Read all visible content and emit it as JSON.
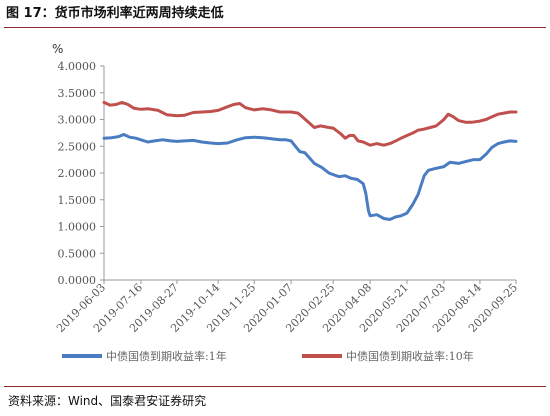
{
  "header": {
    "title": "图 17：货币市场利率近两周持续走低"
  },
  "footer": {
    "source": "资料来源：Wind、国泰君安证券研究"
  },
  "chart_data": {
    "type": "line",
    "unit_label": "%",
    "ylim": [
      0,
      4
    ],
    "y_ticks": [
      "4.0000",
      "3.5000",
      "3.0000",
      "2.5000",
      "2.0000",
      "1.5000",
      "1.0000",
      "0.5000",
      "0.0000"
    ],
    "y_tick_values": [
      4.0,
      3.5,
      3.0,
      2.5,
      2.0,
      1.5,
      1.0,
      0.5,
      0.0
    ],
    "x_ticks": [
      "2019-06-03",
      "2019-07-16",
      "2019-08-27",
      "2019-10-14",
      "2019-11-25",
      "2020-01-07",
      "2020-02-25",
      "2020-04-08",
      "2020-05-21",
      "2020-07-03",
      "2020-08-14",
      "2020-09-25"
    ],
    "xlim": [
      "2019-06-03",
      "2020-09-25"
    ],
    "grid": false,
    "legend_position": "bottom",
    "series": [
      {
        "name": "中债国债到期收益率:1年",
        "color": "#4a7cc1",
        "points": [
          [
            "2019-06-03",
            2.65
          ],
          [
            "2019-06-12",
            2.66
          ],
          [
            "2019-06-20",
            2.68
          ],
          [
            "2019-06-26",
            2.72
          ],
          [
            "2019-07-03",
            2.67
          ],
          [
            "2019-07-10",
            2.65
          ],
          [
            "2019-07-16",
            2.62
          ],
          [
            "2019-07-24",
            2.58
          ],
          [
            "2019-08-01",
            2.6
          ],
          [
            "2019-08-10",
            2.62
          ],
          [
            "2019-08-20",
            2.6
          ],
          [
            "2019-08-27",
            2.59
          ],
          [
            "2019-09-05",
            2.6
          ],
          [
            "2019-09-15",
            2.61
          ],
          [
            "2019-09-25",
            2.58
          ],
          [
            "2019-10-05",
            2.56
          ],
          [
            "2019-10-14",
            2.55
          ],
          [
            "2019-10-25",
            2.56
          ],
          [
            "2019-11-05",
            2.62
          ],
          [
            "2019-11-15",
            2.66
          ],
          [
            "2019-11-25",
            2.67
          ],
          [
            "2019-12-05",
            2.66
          ],
          [
            "2019-12-15",
            2.64
          ],
          [
            "2019-12-25",
            2.62
          ],
          [
            "2020-01-01",
            2.62
          ],
          [
            "2020-01-07",
            2.6
          ],
          [
            "2020-01-12",
            2.5
          ],
          [
            "2020-01-17",
            2.4
          ],
          [
            "2020-01-23",
            2.38
          ],
          [
            "2020-02-03",
            2.18
          ],
          [
            "2020-02-12",
            2.1
          ],
          [
            "2020-02-20",
            2.0
          ],
          [
            "2020-02-25",
            1.97
          ],
          [
            "2020-03-03",
            1.93
          ],
          [
            "2020-03-10",
            1.95
          ],
          [
            "2020-03-17",
            1.9
          ],
          [
            "2020-03-24",
            1.88
          ],
          [
            "2020-03-31",
            1.8
          ],
          [
            "2020-04-03",
            1.62
          ],
          [
            "2020-04-06",
            1.3
          ],
          [
            "2020-04-08",
            1.2
          ],
          [
            "2020-04-16",
            1.22
          ],
          [
            "2020-04-24",
            1.15
          ],
          [
            "2020-05-01",
            1.13
          ],
          [
            "2020-05-08",
            1.18
          ],
          [
            "2020-05-14",
            1.2
          ],
          [
            "2020-05-21",
            1.25
          ],
          [
            "2020-05-28",
            1.42
          ],
          [
            "2020-06-03",
            1.6
          ],
          [
            "2020-06-10",
            1.95
          ],
          [
            "2020-06-15",
            2.05
          ],
          [
            "2020-06-22",
            2.08
          ],
          [
            "2020-07-03",
            2.12
          ],
          [
            "2020-07-10",
            2.2
          ],
          [
            "2020-07-20",
            2.18
          ],
          [
            "2020-07-30",
            2.22
          ],
          [
            "2020-08-07",
            2.25
          ],
          [
            "2020-08-14",
            2.25
          ],
          [
            "2020-08-21",
            2.35
          ],
          [
            "2020-08-28",
            2.48
          ],
          [
            "2020-09-04",
            2.55
          ],
          [
            "2020-09-11",
            2.58
          ],
          [
            "2020-09-18",
            2.6
          ],
          [
            "2020-09-25",
            2.59
          ]
        ]
      },
      {
        "name": "中债国债到期收益率:10年",
        "color": "#c0504d",
        "points": [
          [
            "2019-06-03",
            3.32
          ],
          [
            "2019-06-10",
            3.27
          ],
          [
            "2019-06-17",
            3.28
          ],
          [
            "2019-06-24",
            3.32
          ],
          [
            "2019-07-01",
            3.28
          ],
          [
            "2019-07-08",
            3.21
          ],
          [
            "2019-07-16",
            3.19
          ],
          [
            "2019-07-25",
            3.2
          ],
          [
            "2019-08-05",
            3.17
          ],
          [
            "2019-08-15",
            3.09
          ],
          [
            "2019-08-27",
            3.07
          ],
          [
            "2019-09-05",
            3.08
          ],
          [
            "2019-09-15",
            3.13
          ],
          [
            "2019-09-25",
            3.14
          ],
          [
            "2019-10-05",
            3.15
          ],
          [
            "2019-10-14",
            3.17
          ],
          [
            "2019-10-22",
            3.22
          ],
          [
            "2019-11-01",
            3.28
          ],
          [
            "2019-11-08",
            3.3
          ],
          [
            "2019-11-15",
            3.22
          ],
          [
            "2019-11-25",
            3.18
          ],
          [
            "2019-12-05",
            3.2
          ],
          [
            "2019-12-15",
            3.18
          ],
          [
            "2019-12-25",
            3.14
          ],
          [
            "2020-01-07",
            3.14
          ],
          [
            "2020-01-15",
            3.12
          ],
          [
            "2020-01-20",
            3.05
          ],
          [
            "2020-02-03",
            2.85
          ],
          [
            "2020-02-10",
            2.88
          ],
          [
            "2020-02-20",
            2.85
          ],
          [
            "2020-02-25",
            2.84
          ],
          [
            "2020-03-05",
            2.73
          ],
          [
            "2020-03-10",
            2.65
          ],
          [
            "2020-03-15",
            2.7
          ],
          [
            "2020-03-20",
            2.7
          ],
          [
            "2020-03-25",
            2.6
          ],
          [
            "2020-03-31",
            2.58
          ],
          [
            "2020-04-08",
            2.52
          ],
          [
            "2020-04-16",
            2.55
          ],
          [
            "2020-04-24",
            2.52
          ],
          [
            "2020-05-01",
            2.55
          ],
          [
            "2020-05-08",
            2.6
          ],
          [
            "2020-05-14",
            2.65
          ],
          [
            "2020-05-21",
            2.7
          ],
          [
            "2020-05-28",
            2.75
          ],
          [
            "2020-06-03",
            2.8
          ],
          [
            "2020-06-10",
            2.82
          ],
          [
            "2020-06-17",
            2.85
          ],
          [
            "2020-06-24",
            2.88
          ],
          [
            "2020-07-03",
            3.0
          ],
          [
            "2020-07-08",
            3.1
          ],
          [
            "2020-07-14",
            3.05
          ],
          [
            "2020-07-20",
            2.98
          ],
          [
            "2020-07-28",
            2.95
          ],
          [
            "2020-08-05",
            2.95
          ],
          [
            "2020-08-14",
            2.97
          ],
          [
            "2020-08-21",
            3.0
          ],
          [
            "2020-08-28",
            3.05
          ],
          [
            "2020-09-04",
            3.1
          ],
          [
            "2020-09-11",
            3.12
          ],
          [
            "2020-09-18",
            3.14
          ],
          [
            "2020-09-25",
            3.14
          ]
        ]
      }
    ]
  }
}
